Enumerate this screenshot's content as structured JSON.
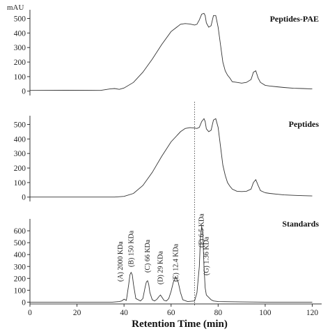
{
  "y_unit_label": "mAU",
  "x_axis": {
    "label": "Retention Time (min)",
    "ticks": [
      0,
      20,
      40,
      60,
      80,
      100,
      120
    ],
    "range": [
      0,
      124
    ]
  },
  "reference_line_x": 70,
  "chart_data": [
    {
      "type": "line",
      "title": "Peptides-PAE",
      "ylim": [
        -30,
        560
      ],
      "yticks": [
        0,
        100,
        200,
        300,
        400,
        500
      ],
      "x": [
        0,
        15,
        30,
        34,
        36,
        38,
        40,
        44,
        48,
        52,
        56,
        60,
        64,
        66,
        68,
        70,
        71,
        72,
        73,
        74,
        74.5,
        75,
        76,
        77,
        78,
        79,
        80,
        81,
        82,
        83,
        84,
        85,
        86,
        88,
        90,
        92,
        94,
        95,
        96,
        97,
        98,
        100,
        102,
        105,
        108,
        112,
        116,
        120
      ],
      "y": [
        5,
        6,
        5,
        15,
        18,
        12,
        22,
        60,
        130,
        220,
        320,
        410,
        460,
        465,
        462,
        455,
        460,
        490,
        530,
        535,
        520,
        470,
        440,
        450,
        520,
        520,
        440,
        320,
        200,
        140,
        110,
        90,
        65,
        60,
        55,
        60,
        80,
        130,
        140,
        90,
        60,
        40,
        35,
        30,
        25,
        20,
        18,
        15
      ]
    },
    {
      "type": "line",
      "title": "Peptides",
      "ylim": [
        -30,
        560
      ],
      "yticks": [
        0,
        100,
        200,
        300,
        400,
        500
      ],
      "x": [
        0,
        15,
        30,
        36,
        40,
        44,
        48,
        52,
        56,
        60,
        64,
        66,
        68,
        70,
        71,
        72,
        73,
        74,
        74.5,
        75,
        76,
        77,
        78,
        79,
        80,
        81,
        82,
        83,
        84,
        85,
        86,
        88,
        90,
        92,
        94,
        95,
        96,
        97,
        98,
        100,
        102,
        105,
        108,
        112,
        116,
        120
      ],
      "y": [
        0,
        0,
        0,
        0,
        5,
        25,
        80,
        170,
        280,
        380,
        450,
        472,
        478,
        475,
        472,
        480,
        520,
        540,
        520,
        470,
        450,
        460,
        530,
        540,
        480,
        350,
        220,
        150,
        100,
        75,
        55,
        40,
        38,
        40,
        55,
        100,
        120,
        80,
        45,
        30,
        25,
        20,
        15,
        12,
        10,
        8
      ]
    },
    {
      "type": "line",
      "title": "Standards",
      "ylim": [
        -15,
        700
      ],
      "yticks": [
        0,
        100,
        200,
        300,
        400,
        500,
        600
      ],
      "x": [
        0,
        20,
        35,
        38,
        39,
        40,
        41,
        42,
        42.5,
        43,
        43.5,
        44,
        45,
        47,
        48,
        49,
        49.5,
        50,
        50.5,
        51,
        52,
        53,
        54,
        55,
        55.5,
        56,
        57,
        58,
        59,
        60,
        61,
        62,
        63,
        64,
        65,
        67,
        70,
        71,
        72,
        72.5,
        73,
        73.5,
        74,
        74.5,
        75,
        76,
        77,
        78,
        80,
        90,
        100,
        110,
        120
      ],
      "y": [
        0,
        0,
        0,
        5,
        10,
        25,
        15,
        150,
        230,
        250,
        230,
        150,
        30,
        10,
        30,
        130,
        170,
        180,
        150,
        80,
        20,
        10,
        25,
        50,
        60,
        45,
        15,
        10,
        30,
        90,
        170,
        210,
        170,
        80,
        20,
        5,
        10,
        80,
        300,
        550,
        640,
        560,
        300,
        120,
        60,
        40,
        20,
        10,
        5,
        2,
        0,
        0,
        0
      ],
      "annotations": [
        "(A) 2000 KDa",
        "(B) 150 KDa",
        "(C) 66 KDa",
        "(D) 29 KDa",
        "(E) 12.4 KDa",
        "(F) 6.5 KDa",
        "(G) 1.36 KDa"
      ]
    }
  ]
}
